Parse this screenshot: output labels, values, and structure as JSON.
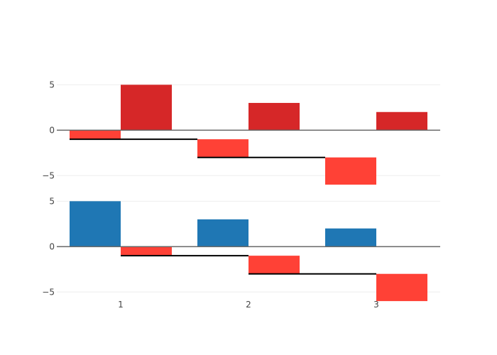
{
  "chart_data": [
    {
      "type": "bar",
      "panel": "top",
      "x": [
        1,
        2,
        3
      ],
      "series": [
        {
          "color": "#ff4136",
          "bars": [
            {
              "base": 0,
              "value": -1
            },
            {
              "base": -1,
              "value": -2
            },
            {
              "base": -3,
              "value": -3
            }
          ]
        },
        {
          "color": "#d62728",
          "bars": [
            {
              "base": 0,
              "value": 5
            },
            {
              "base": 0,
              "value": 3
            },
            {
              "base": 0,
              "value": 2
            }
          ]
        }
      ],
      "connectors": [
        {
          "y": -1,
          "from_x": 1,
          "to_x": 2
        },
        {
          "y": -3,
          "from_x": 2,
          "to_x": 3
        }
      ],
      "ylim": [
        -7.4,
        8
      ],
      "yticks": [
        5,
        0,
        -5
      ],
      "ytick_labels": [
        "5",
        "0",
        "−5"
      ],
      "grid": true,
      "zeroline": true
    },
    {
      "type": "bar",
      "panel": "bottom",
      "x": [
        1,
        2,
        3
      ],
      "series": [
        {
          "color": "#1f77b4",
          "bars": [
            {
              "base": 0,
              "value": 5
            },
            {
              "base": 0,
              "value": 3
            },
            {
              "base": 0,
              "value": 2
            }
          ]
        },
        {
          "color": "#ff4136",
          "bars": [
            {
              "base": 0,
              "value": -1
            },
            {
              "base": -1,
              "value": -2
            },
            {
              "base": -3,
              "value": -3
            }
          ]
        }
      ],
      "connectors": [
        {
          "y": -1,
          "from_x": 1,
          "to_x": 2
        },
        {
          "y": -3,
          "from_x": 2,
          "to_x": 3
        }
      ],
      "ylim": [
        -7.4,
        8
      ],
      "yticks": [
        5,
        0,
        -5
      ],
      "ytick_labels": [
        "5",
        "0",
        "−5"
      ],
      "xticks": [
        1,
        2,
        3
      ],
      "xtick_labels": [
        "1",
        "2",
        "3"
      ],
      "grid": true,
      "zeroline": true
    }
  ]
}
